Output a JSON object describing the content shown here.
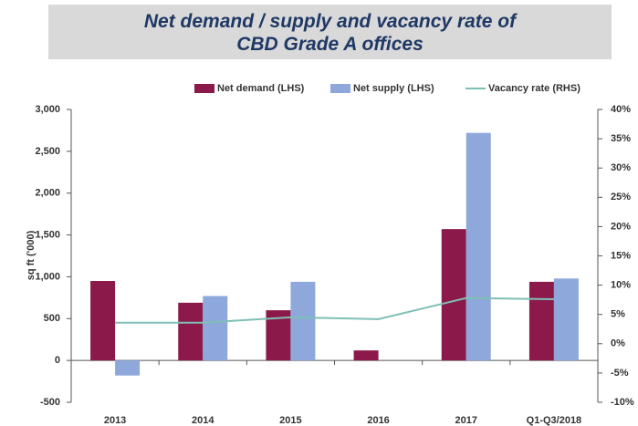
{
  "chart_data": {
    "type": "bar",
    "title": "Net demand / supply and vacancy rate of CBD Grade A offices",
    "y_label": "sq ft ('000)",
    "categories": [
      "2013",
      "2014",
      "2015",
      "2016",
      "2017",
      "Q1-Q3/2018"
    ],
    "series": [
      {
        "name": "Net demand (LHS)",
        "color": "#8b1a4a",
        "type": "bar",
        "values": [
          950,
          690,
          600,
          120,
          1570,
          940
        ]
      },
      {
        "name": "Net supply (LHS)",
        "color": "#8fa8dc",
        "type": "bar",
        "values": [
          -180,
          770,
          940,
          0,
          2720,
          980
        ]
      },
      {
        "name": "Vacancy rate (RHS)",
        "color": "#7fbfb5",
        "type": "line",
        "axis": "y2",
        "values": [
          3.6,
          3.6,
          4.5,
          4.2,
          7.8,
          7.6
        ]
      }
    ],
    "ylim": [
      -500,
      3000
    ],
    "yticks": [
      {
        "value": -500,
        "label": "-500"
      },
      0,
      500,
      {
        "value": 1000,
        "label": "1,000"
      },
      {
        "value": 1500,
        "label": "1,500"
      },
      {
        "value": 2000,
        "label": "2,000"
      },
      {
        "value": 2500,
        "label": "2,500"
      },
      {
        "value": 3000,
        "label": "3,000"
      }
    ],
    "y2lim": [
      -10,
      40
    ],
    "y2ticks": [
      {
        "value": -10,
        "label": "-10%"
      },
      {
        "value": -5,
        "label": "-5%"
      },
      {
        "value": 0,
        "label": "0%"
      },
      {
        "value": 5,
        "label": "5%"
      },
      {
        "value": 10,
        "label": "10%"
      },
      {
        "value": 15,
        "label": "15%"
      },
      {
        "value": 20,
        "label": "20%"
      },
      {
        "value": 25,
        "label": "25%"
      },
      {
        "value": 30,
        "label": "30%"
      },
      {
        "value": 35,
        "label": "35%"
      },
      {
        "value": 40,
        "label": "40%"
      }
    ],
    "legend": "top"
  }
}
